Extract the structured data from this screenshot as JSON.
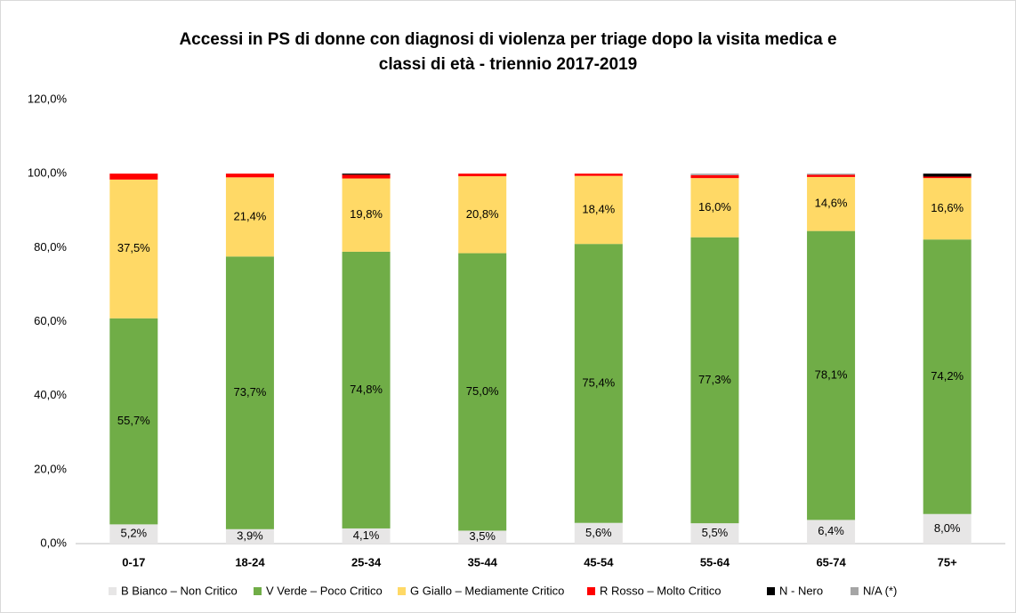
{
  "chart_data": {
    "type": "stacked_bar",
    "title": [
      "Accessi in PS di donne con diagnosi di violenza per triage dopo la visita medica e",
      "classi di età - triennio 2017-2019"
    ],
    "categories": [
      "0-17",
      "18-24",
      "25-34",
      "35-44",
      "45-54",
      "55-64",
      "65-74",
      "75+"
    ],
    "series": [
      {
        "name": "B Bianco – Non Critico",
        "color": "#e7e6e6",
        "values": [
          5.2,
          3.9,
          4.1,
          3.5,
          5.6,
          5.5,
          6.4,
          8.0
        ],
        "value_labels": [
          "5,2%",
          "3,9%",
          "4,1%",
          "3,5%",
          "5,6%",
          "5,5%",
          "6,4%",
          "8,0%"
        ]
      },
      {
        "name": "V Verde – Poco Critico",
        "color": "#70ad47",
        "values": [
          55.7,
          73.7,
          74.8,
          75.0,
          75.4,
          77.3,
          78.1,
          74.2
        ],
        "value_labels": [
          "55,7%",
          "73,7%",
          "74,8%",
          "75,0%",
          "75,4%",
          "77,3%",
          "78,1%",
          "74,2%"
        ]
      },
      {
        "name": "G Giallo – Mediamente Critico",
        "color": "#ffd966",
        "values": [
          37.5,
          21.4,
          19.8,
          20.8,
          18.4,
          16.0,
          14.6,
          16.6
        ],
        "value_labels": [
          "37,5%",
          "21,4%",
          "19,8%",
          "20,8%",
          "18,4%",
          "16,0%",
          "14,6%",
          "16,6%"
        ]
      },
      {
        "name": "R Rosso – Molto Critico",
        "color": "#ff0000",
        "values": [
          1.6,
          1.0,
          1.0,
          0.7,
          0.6,
          0.8,
          0.6,
          0.4
        ]
      },
      {
        "name": "N - Nero",
        "color": "#000000",
        "values": [
          0,
          0,
          0.3,
          0,
          0,
          0,
          0,
          0.8
        ]
      },
      {
        "name": "N/A (*)",
        "color": "#a5a5a5",
        "values": [
          0,
          0,
          0,
          0,
          0,
          0.4,
          0.3,
          0
        ]
      }
    ],
    "ylim": [
      0,
      120
    ],
    "yticks": [
      {
        "value": 0,
        "label": "0,0%"
      },
      {
        "value": 20,
        "label": "20,0%"
      },
      {
        "value": 40,
        "label": "40,0%"
      },
      {
        "value": 60,
        "label": "60,0%"
      },
      {
        "value": 80,
        "label": "80,0%"
      },
      {
        "value": 100,
        "label": "100,0%"
      },
      {
        "value": 120,
        "label": "120,0%"
      }
    ]
  }
}
